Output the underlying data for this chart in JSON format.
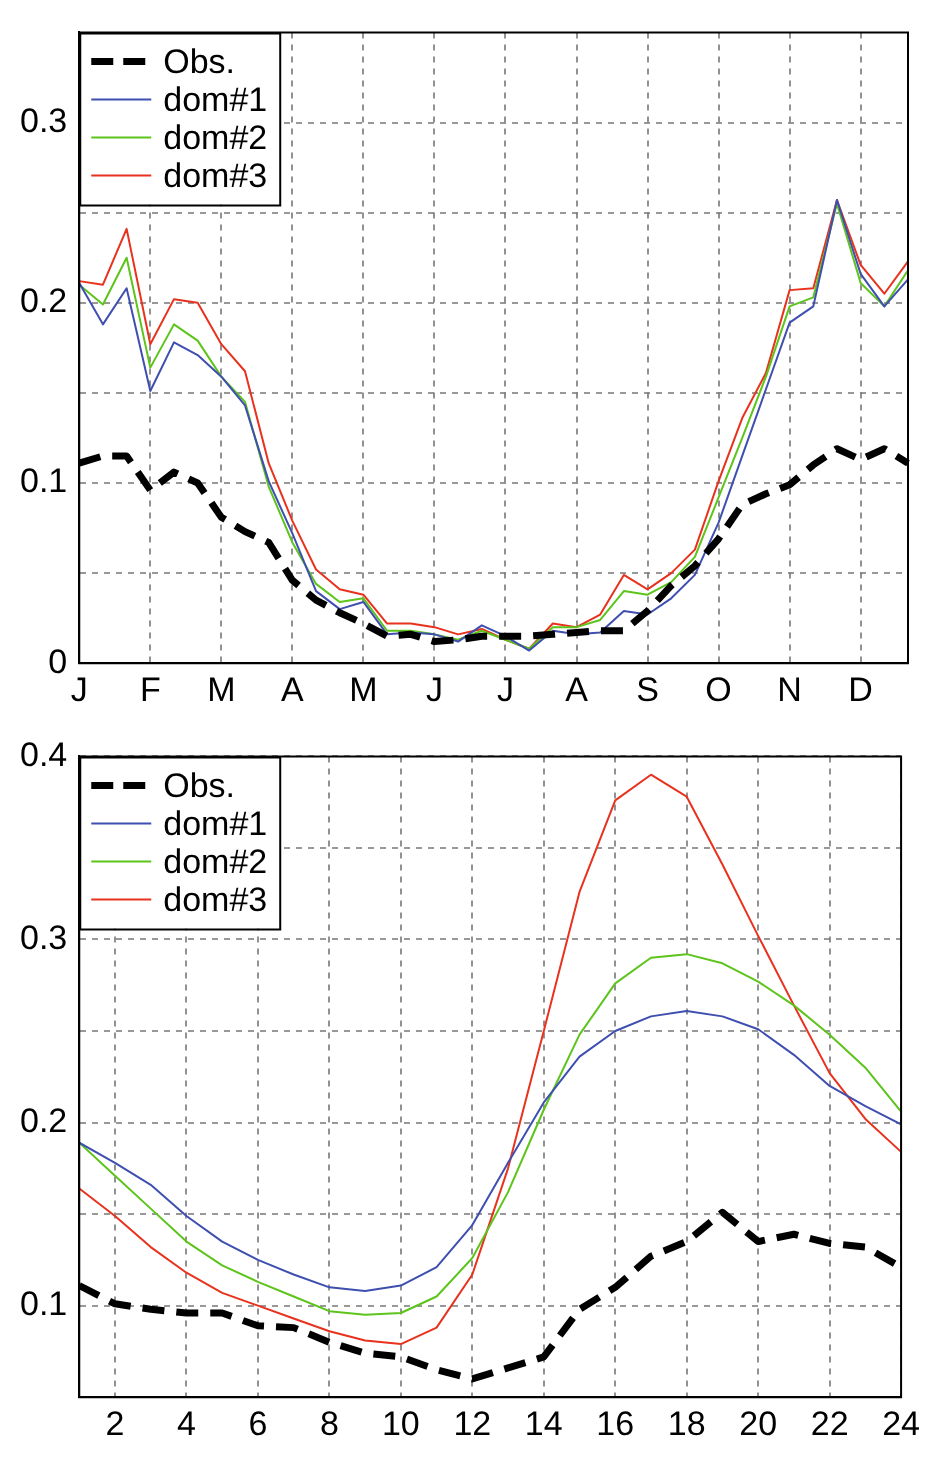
{
  "chart_data": [
    {
      "type": "line",
      "categories": [
        "J",
        null,
        null,
        "F",
        null,
        null,
        "M",
        null,
        null,
        "A",
        null,
        null,
        "M",
        null,
        null,
        "J",
        null,
        null,
        "J",
        null,
        null,
        "A",
        null,
        null,
        "S",
        null,
        null,
        "O",
        null,
        null,
        "N",
        null,
        null,
        "D",
        null,
        null
      ],
      "ylim": [
        0,
        0.35
      ],
      "yticks": [
        0,
        {
          "value": 0.05,
          "label": null
        },
        0.1,
        {
          "value": 0.15,
          "label": null
        },
        0.2,
        {
          "value": 0.25,
          "label": null
        },
        0.3
      ],
      "grid": true,
      "legend": "top left",
      "series": [
        {
          "name": "Obs.",
          "color": "#000000",
          "line_style": "dashed",
          "values": [
            0.111,
            0.115,
            0.115,
            0.096,
            0.106,
            0.1,
            0.081,
            0.073,
            0.067,
            0.046,
            0.035,
            0.028,
            0.022,
            0.015,
            0.016,
            0.012,
            0.013,
            0.015,
            0.015,
            0.015,
            0.016,
            0.017,
            0.018,
            0.018,
            0.029,
            0.043,
            0.054,
            0.069,
            0.088,
            0.094,
            0.099,
            0.11,
            0.119,
            0.113,
            0.119,
            0.111
          ]
        },
        {
          "name": "dom#1",
          "color": "#3f4fb0",
          "line_style": "solid",
          "values": [
            0.211,
            0.188,
            0.208,
            0.151,
            0.178,
            0.171,
            0.159,
            0.143,
            0.101,
            0.072,
            0.04,
            0.03,
            0.034,
            0.016,
            0.017,
            0.016,
            0.012,
            0.021,
            0.015,
            0.007,
            0.018,
            0.016,
            0.017,
            0.029,
            0.027,
            0.036,
            0.049,
            0.078,
            0.115,
            0.152,
            0.189,
            0.198,
            0.257,
            0.216,
            0.198,
            0.213
          ]
        },
        {
          "name": "dom#2",
          "color": "#5cc41a",
          "line_style": "solid",
          "values": [
            0.21,
            0.199,
            0.225,
            0.164,
            0.188,
            0.179,
            0.159,
            0.145,
            0.098,
            0.067,
            0.044,
            0.034,
            0.036,
            0.018,
            0.018,
            0.016,
            0.013,
            0.018,
            0.013,
            0.008,
            0.02,
            0.02,
            0.024,
            0.04,
            0.038,
            0.045,
            0.059,
            0.092,
            0.125,
            0.159,
            0.198,
            0.203,
            0.255,
            0.211,
            0.198,
            0.218
          ]
        },
        {
          "name": "dom#3",
          "color": "#e8321e",
          "line_style": "solid",
          "values": [
            0.212,
            0.21,
            0.241,
            0.177,
            0.202,
            0.2,
            0.177,
            0.162,
            0.111,
            0.079,
            0.052,
            0.041,
            0.038,
            0.022,
            0.022,
            0.02,
            0.016,
            0.019,
            0.013,
            0.008,
            0.022,
            0.02,
            0.027,
            0.049,
            0.041,
            0.05,
            0.063,
            0.101,
            0.136,
            0.161,
            0.207,
            0.208,
            0.257,
            0.221,
            0.205,
            0.223
          ]
        }
      ]
    },
    {
      "type": "line",
      "x": [
        1,
        2,
        3,
        4,
        5,
        6,
        7,
        8,
        9,
        10,
        11,
        12,
        13,
        14,
        15,
        16,
        17,
        18,
        19,
        20,
        21,
        22,
        23,
        24
      ],
      "xlim": [
        1,
        24
      ],
      "xticks": [
        2,
        4,
        6,
        8,
        10,
        12,
        14,
        16,
        18,
        20,
        22,
        24
      ],
      "ylim": [
        0.05,
        0.4
      ],
      "yticks": [
        0.1,
        {
          "value": 0.15,
          "label": null
        },
        0.2,
        {
          "value": 0.25,
          "label": null
        },
        0.3,
        {
          "value": 0.35,
          "label": null
        },
        0.4
      ],
      "grid": true,
      "legend": "top left",
      "series": [
        {
          "name": "Obs.",
          "color": "#000000",
          "line_style": "dashed",
          "values": [
            0.111,
            0.101,
            0.098,
            0.096,
            0.096,
            0.089,
            0.088,
            0.08,
            0.074,
            0.072,
            0.065,
            0.06,
            0.066,
            0.072,
            0.098,
            0.11,
            0.127,
            0.135,
            0.151,
            0.135,
            0.139,
            0.134,
            0.132,
            0.121
          ]
        },
        {
          "name": "dom#1",
          "color": "#3f4fb0",
          "line_style": "solid",
          "values": [
            0.189,
            0.178,
            0.166,
            0.149,
            0.135,
            0.125,
            0.117,
            0.11,
            0.108,
            0.111,
            0.121,
            0.144,
            0.178,
            0.211,
            0.236,
            0.25,
            0.258,
            0.261,
            0.258,
            0.251,
            0.237,
            0.22,
            0.209,
            0.199
          ]
        },
        {
          "name": "dom#2",
          "color": "#5cc41a",
          "line_style": "solid",
          "values": [
            0.189,
            0.171,
            0.153,
            0.135,
            0.122,
            0.113,
            0.105,
            0.097,
            0.095,
            0.096,
            0.105,
            0.126,
            0.162,
            0.207,
            0.248,
            0.276,
            0.29,
            0.292,
            0.287,
            0.277,
            0.264,
            0.248,
            0.23,
            0.206
          ]
        },
        {
          "name": "dom#3",
          "color": "#e8321e",
          "line_style": "solid",
          "values": [
            0.164,
            0.149,
            0.132,
            0.118,
            0.107,
            0.1,
            0.093,
            0.086,
            0.081,
            0.079,
            0.088,
            0.117,
            0.175,
            0.25,
            0.326,
            0.376,
            0.39,
            0.378,
            0.341,
            0.302,
            0.264,
            0.227,
            0.202,
            0.184
          ]
        }
      ]
    }
  ]
}
